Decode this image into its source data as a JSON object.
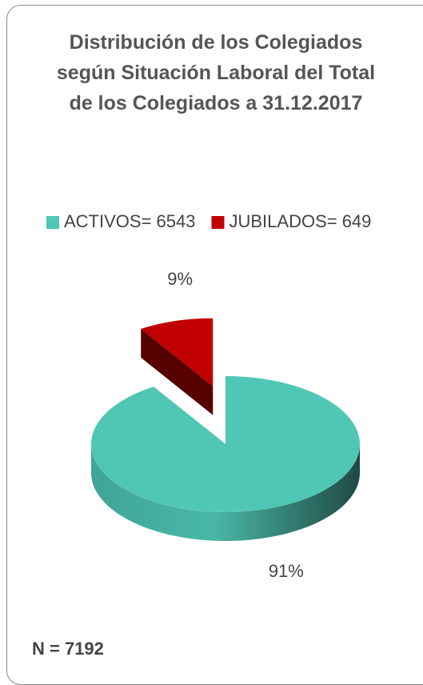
{
  "chart_data": {
    "type": "pie",
    "title": "Distribución de los Colegiados según Situación Laboral del Total de los Colegiados a 31.12.2017",
    "categories": [
      "ACTIVOS= 6543",
      "JUBILADOS= 649"
    ],
    "values": [
      91,
      9
    ],
    "value_labels": [
      "91%",
      "9%"
    ],
    "colors": [
      "#4fc7b4",
      "#c00000"
    ],
    "legend": "top",
    "annotation": "N = 7192"
  }
}
